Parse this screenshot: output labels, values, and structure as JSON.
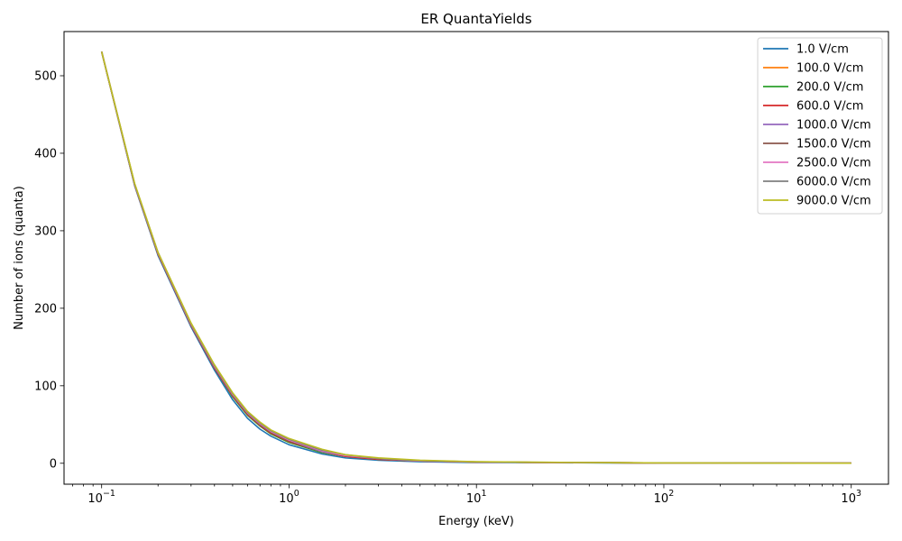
{
  "chart_data": {
    "type": "line",
    "title": "ER QuantaYields",
    "xlabel": "Energy (keV)",
    "ylabel": "Number of ions (quanta)",
    "xscale": "log",
    "xlim": [
      0.063,
      1580
    ],
    "ylim": [
      -27,
      557
    ],
    "x_ticks": [
      {
        "value": 0.1,
        "base": "10",
        "exp": "−1"
      },
      {
        "value": 1,
        "base": "10",
        "exp": "0"
      },
      {
        "value": 10,
        "base": "10",
        "exp": "1"
      },
      {
        "value": 100,
        "base": "10",
        "exp": "2"
      },
      {
        "value": 1000,
        "base": "10",
        "exp": "3"
      }
    ],
    "y_ticks": [
      {
        "value": 0,
        "label": "0"
      },
      {
        "value": 100,
        "label": "100"
      },
      {
        "value": 200,
        "label": "200"
      },
      {
        "value": 300,
        "label": "300"
      },
      {
        "value": 400,
        "label": "400"
      },
      {
        "value": 500,
        "label": "500"
      }
    ],
    "grid": false,
    "legend_position": "top-right",
    "x": [
      0.1,
      0.15,
      0.2,
      0.3,
      0.4,
      0.5,
      0.6,
      0.7,
      0.8,
      1,
      1.5,
      2,
      3,
      5,
      10,
      20,
      50,
      100,
      300,
      1000
    ],
    "series": [
      {
        "name": "1.0 V/cm",
        "color": "#1f77b4",
        "values": [
          531,
          358,
          268,
          176,
          120,
          82,
          58,
          44,
          35,
          24,
          12,
          7,
          4,
          2,
          1,
          0.8,
          0.5,
          0.3,
          0.2,
          0.1
        ]
      },
      {
        "name": "100.0 V/cm",
        "color": "#ff7f0e",
        "values": [
          531,
          359,
          270,
          178,
          123,
          86,
          62,
          48,
          38,
          27,
          14,
          9,
          5,
          3,
          1.5,
          1.1,
          0.7,
          0.4,
          0.2,
          0.1
        ]
      },
      {
        "name": "200.0 V/cm",
        "color": "#2ca02c",
        "values": [
          531,
          359,
          270,
          178,
          123,
          86,
          62,
          48,
          38,
          27,
          14,
          9,
          5,
          3,
          1.5,
          1.1,
          0.7,
          0.4,
          0.2,
          0.1
        ]
      },
      {
        "name": "600.0 V/cm",
        "color": "#d62728",
        "values": [
          531,
          359,
          270,
          178,
          123,
          87,
          63,
          49,
          39,
          28,
          15,
          9,
          5,
          3,
          1.5,
          1.1,
          0.7,
          0.4,
          0.2,
          0.1
        ]
      },
      {
        "name": "1000.0 V/cm",
        "color": "#9467bd",
        "values": [
          531,
          359,
          271,
          179,
          124,
          88,
          64,
          50,
          40,
          29,
          15,
          10,
          6,
          3,
          1.6,
          1.2,
          0.7,
          0.4,
          0.2,
          0.1
        ]
      },
      {
        "name": "1500.0 V/cm",
        "color": "#8c564b",
        "values": [
          531,
          360,
          271,
          179,
          124,
          88,
          64,
          50,
          40,
          29,
          16,
          10,
          6,
          3,
          1.6,
          1.2,
          0.7,
          0.4,
          0.2,
          0.1
        ]
      },
      {
        "name": "2500.0 V/cm",
        "color": "#e377c2",
        "values": [
          531,
          360,
          271,
          179,
          125,
          89,
          65,
          51,
          41,
          30,
          16,
          10,
          6,
          3,
          1.7,
          1.2,
          0.8,
          0.4,
          0.2,
          0.1
        ]
      },
      {
        "name": "6000.0 V/cm",
        "color": "#7f7f7f",
        "values": [
          531,
          360,
          272,
          180,
          126,
          90,
          66,
          52,
          42,
          31,
          17,
          11,
          6,
          3.5,
          1.8,
          1.3,
          0.8,
          0.4,
          0.2,
          0.1
        ]
      },
      {
        "name": "9000.0 V/cm",
        "color": "#bcbd22",
        "values": [
          531,
          361,
          272,
          181,
          127,
          91,
          67,
          53,
          43,
          32,
          18,
          11,
          7,
          4,
          2,
          1.4,
          0.8,
          0.5,
          0.2,
          0.1
        ]
      }
    ]
  }
}
